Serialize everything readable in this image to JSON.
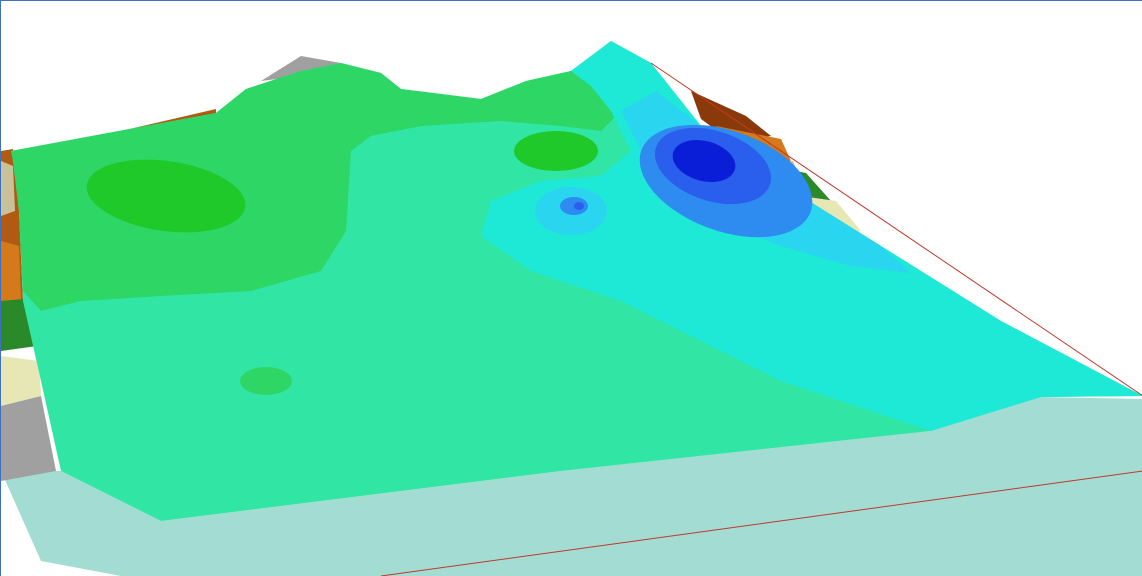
{
  "viewer": {
    "render_type": "3d-surface-contour",
    "background_color": "#ffffff",
    "frame_color": "#3f6fbf",
    "colors": {
      "base_plane": "#a3dcd3",
      "plane_edge": "#c0392b",
      "surface_main": "#31e6a4",
      "surface_cyan": "#1ee8d6",
      "surface_light_blue": "#2ad6ef",
      "surface_mid_blue": "#2e8bf0",
      "surface_blue": "#2a5fee",
      "surface_deep_blue": "#0a1ed8",
      "surface_green": "#2dd665",
      "surface_dark_green": "#1fc92a",
      "terrain_brown": "#b05a12",
      "terrain_dark_brown": "#8a3a0a",
      "terrain_orange": "#d57a1b",
      "terrain_khaki": "#c9c19a",
      "terrain_pale": "#e7e7b5",
      "terrain_dark_green": "#2a8a2a",
      "terrain_grey": "#a0a0a0"
    }
  }
}
